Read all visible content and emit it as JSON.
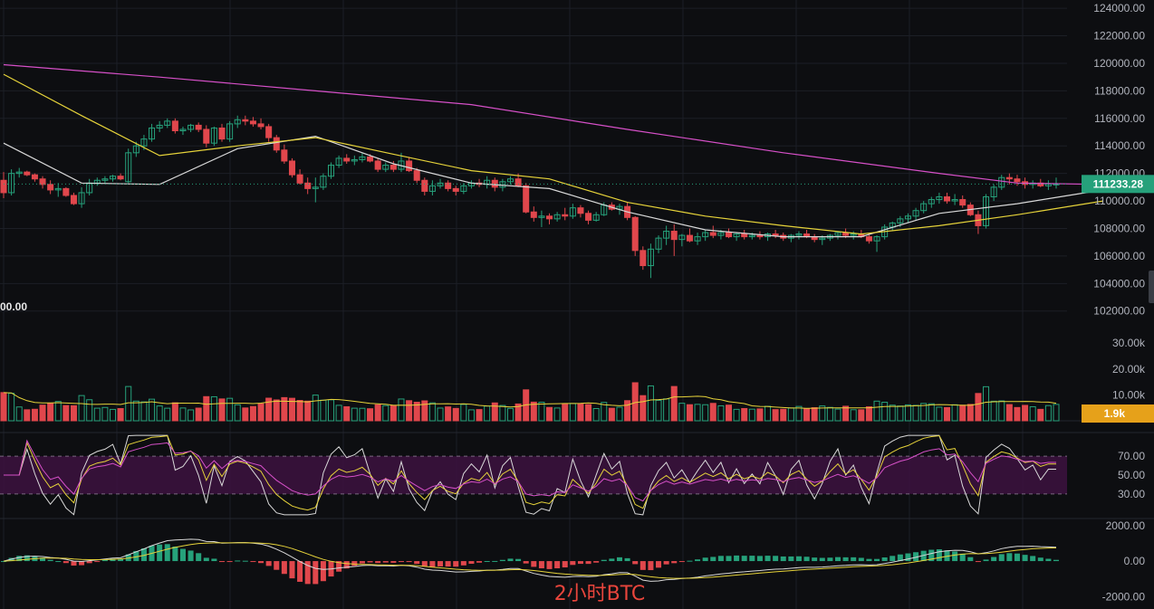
{
  "caption": "2小时BTC",
  "colors": {
    "background": "#0d0e11",
    "grid": "#1c1f26",
    "up": "#26a17b",
    "down": "#e0474c",
    "ma_short": "#d9d9d9",
    "ma_mid": "#e6d33a",
    "ma_long": "#d650c8",
    "last_price_tag": "#26a17b",
    "volume_tag": "#e6a11a",
    "rsi_band": "#3d1240"
  },
  "chart_data": [
    {
      "panel": "price",
      "type": "candlestick",
      "y_ticks": [
        "124000.00",
        "122000.00",
        "120000.00",
        "118000.00",
        "116000.00",
        "114000.00",
        "112000.00",
        "110000.00",
        "108000.00",
        "106000.00",
        "104000.00",
        "102000.00"
      ],
      "ylim": [
        100800,
        124600
      ],
      "last_price_label": "111233.28",
      "left_edge_label": "00.00",
      "ohlc_approx": [
        [
          111500,
          112100,
          110200,
          110600
        ],
        [
          110600,
          112300,
          110400,
          112000
        ],
        [
          112000,
          112400,
          111700,
          112100
        ],
        [
          112100,
          112200,
          111800,
          111900
        ],
        [
          111900,
          112000,
          111400,
          111600
        ],
        [
          111600,
          111800,
          110900,
          111200
        ],
        [
          111200,
          111500,
          110500,
          110800
        ],
        [
          110800,
          111300,
          110300,
          110900
        ],
        [
          110900,
          111000,
          110300,
          110400
        ],
        [
          110400,
          110600,
          109700,
          109800
        ],
        [
          109800,
          111000,
          109500,
          110600
        ],
        [
          110600,
          111600,
          110400,
          111300
        ],
        [
          111300,
          111700,
          111100,
          111500
        ],
        [
          111500,
          111800,
          111300,
          111600
        ],
        [
          111600,
          111900,
          111400,
          111800
        ],
        [
          111800,
          112000,
          111500,
          111600
        ],
        [
          111400,
          113800,
          111300,
          113500
        ],
        [
          113500,
          114300,
          113200,
          114000
        ],
        [
          114000,
          114800,
          113700,
          114500
        ],
        [
          114500,
          115600,
          114300,
          115300
        ],
        [
          115300,
          115800,
          115000,
          115500
        ],
        [
          115500,
          116000,
          115300,
          115800
        ],
        [
          115800,
          116000,
          114900,
          115100
        ],
        [
          115100,
          115400,
          114800,
          115200
        ],
        [
          115200,
          115600,
          115000,
          115500
        ],
        [
          115500,
          115700,
          115000,
          115200
        ],
        [
          115200,
          115500,
          113900,
          114200
        ],
        [
          114200,
          115400,
          114000,
          115300
        ],
        [
          115300,
          115600,
          114300,
          114500
        ],
        [
          114500,
          115800,
          114300,
          115600
        ],
        [
          115600,
          116200,
          115300,
          115900
        ],
        [
          115900,
          116200,
          115500,
          115800
        ],
        [
          115800,
          116100,
          115400,
          115600
        ],
        [
          115600,
          116000,
          115200,
          115400
        ],
        [
          115400,
          115600,
          114300,
          114600
        ],
        [
          114600,
          114800,
          113500,
          113700
        ],
        [
          113700,
          114100,
          112700,
          112900
        ],
        [
          112900,
          113100,
          111700,
          111900
        ],
        [
          111900,
          112300,
          111200,
          111300
        ],
        [
          111300,
          111700,
          110500,
          110900
        ],
        [
          110900,
          111700,
          109900,
          111000
        ],
        [
          111000,
          112000,
          110800,
          111800
        ],
        [
          111800,
          112800,
          111600,
          112600
        ],
        [
          112600,
          113300,
          112400,
          113100
        ],
        [
          113100,
          113400,
          112700,
          112900
        ],
        [
          112900,
          113300,
          112600,
          113000
        ],
        [
          113000,
          113500,
          112800,
          113200
        ],
        [
          113200,
          113400,
          112800,
          112900
        ],
        [
          112900,
          113100,
          112100,
          112300
        ],
        [
          112300,
          112800,
          112100,
          112600
        ],
        [
          112600,
          112900,
          112100,
          112300
        ],
        [
          112300,
          113500,
          112100,
          112900
        ],
        [
          112900,
          113200,
          112100,
          112200
        ],
        [
          112200,
          112400,
          111300,
          111500
        ],
        [
          111500,
          111700,
          110400,
          110700
        ],
        [
          110700,
          111500,
          110400,
          111100
        ],
        [
          111100,
          111600,
          110900,
          111300
        ],
        [
          111300,
          111500,
          110700,
          110900
        ],
        [
          110900,
          111100,
          110400,
          110700
        ],
        [
          110700,
          111300,
          110500,
          111100
        ],
        [
          111100,
          111500,
          110900,
          111300
        ],
        [
          111300,
          111600,
          111000,
          111200
        ],
        [
          111200,
          111800,
          110900,
          111500
        ],
        [
          111500,
          111700,
          110700,
          111000
        ],
        [
          111000,
          111600,
          110700,
          111400
        ],
        [
          111400,
          111800,
          111200,
          111600
        ],
        [
          111600,
          112000,
          111000,
          111100
        ],
        [
          111100,
          111300,
          109100,
          109200
        ],
        [
          109200,
          109600,
          108500,
          108800
        ],
        [
          108800,
          109300,
          108100,
          108900
        ],
        [
          108900,
          109100,
          108300,
          108700
        ],
        [
          108700,
          109200,
          108500,
          109000
        ],
        [
          109000,
          109500,
          108600,
          108900
        ],
        [
          108900,
          109800,
          108700,
          109500
        ],
        [
          109500,
          109700,
          108800,
          109100
        ],
        [
          109100,
          109300,
          108300,
          108600
        ],
        [
          108600,
          109200,
          108500,
          109000
        ],
        [
          109000,
          109900,
          108900,
          109700
        ],
        [
          109700,
          109900,
          109300,
          109400
        ],
        [
          109400,
          109800,
          109000,
          109600
        ],
        [
          109600,
          109900,
          108600,
          108800
        ],
        [
          108800,
          108900,
          106000,
          106400
        ],
        [
          106400,
          106700,
          105000,
          105300
        ],
        [
          105300,
          106900,
          104400,
          106500
        ],
        [
          106500,
          107500,
          106200,
          107300
        ],
        [
          107300,
          108200,
          106800,
          107800
        ],
        [
          107800,
          108300,
          106000,
          107200
        ],
        [
          107200,
          107600,
          106700,
          107500
        ],
        [
          107500,
          108000,
          107000,
          107100
        ],
        [
          107100,
          107700,
          106800,
          107400
        ],
        [
          107400,
          107900,
          107100,
          107700
        ],
        [
          107700,
          108200,
          107300,
          107500
        ],
        [
          107500,
          107900,
          107200,
          107700
        ],
        [
          107700,
          108000,
          107300,
          107400
        ],
        [
          107400,
          107700,
          107100,
          107600
        ],
        [
          107600,
          107900,
          107200,
          107400
        ],
        [
          107400,
          107700,
          107200,
          107500
        ],
        [
          107500,
          107800,
          107200,
          107400
        ],
        [
          107400,
          107700,
          107100,
          107600
        ],
        [
          107600,
          107900,
          107300,
          107500
        ],
        [
          107500,
          107700,
          107100,
          107300
        ],
        [
          107300,
          107600,
          107000,
          107500
        ],
        [
          107500,
          107800,
          107200,
          107600
        ],
        [
          107600,
          107900,
          107300,
          107400
        ],
        [
          107400,
          107600,
          107000,
          107200
        ],
        [
          107200,
          107500,
          106800,
          107300
        ],
        [
          107300,
          107600,
          107100,
          107500
        ],
        [
          107500,
          107800,
          107200,
          107700
        ],
        [
          107700,
          108000,
          107300,
          107500
        ],
        [
          107500,
          107800,
          107200,
          107600
        ],
        [
          107600,
          107900,
          107300,
          107400
        ],
        [
          107400,
          107600,
          106900,
          107100
        ],
        [
          107100,
          107500,
          106300,
          107400
        ],
        [
          107400,
          108300,
          107200,
          108100
        ],
        [
          108100,
          108500,
          107800,
          108400
        ],
        [
          108400,
          108900,
          108100,
          108700
        ],
        [
          108700,
          109100,
          108400,
          108900
        ],
        [
          108900,
          109500,
          108600,
          109300
        ],
        [
          109300,
          110000,
          109100,
          109800
        ],
        [
          109800,
          110300,
          109500,
          110100
        ],
        [
          110100,
          110600,
          109800,
          110300
        ],
        [
          110300,
          110600,
          109800,
          110000
        ],
        [
          110000,
          110500,
          109700,
          110100
        ],
        [
          110100,
          110400,
          109500,
          109700
        ],
        [
          109700,
          109900,
          108900,
          109000
        ],
        [
          109000,
          109300,
          107600,
          108200
        ],
        [
          108200,
          110500,
          108000,
          110300
        ],
        [
          110300,
          111200,
          110000,
          111000
        ],
        [
          111000,
          111900,
          110800,
          111700
        ],
        [
          111700,
          112000,
          111200,
          111600
        ],
        [
          111600,
          111900,
          111100,
          111400
        ],
        [
          111400,
          111700,
          110900,
          111200
        ],
        [
          111200,
          111500,
          110900,
          111300
        ],
        [
          111300,
          111600,
          111000,
          111100
        ],
        [
          111100,
          111500,
          110800,
          111233
        ],
        [
          111233,
          111700,
          110900,
          111233
        ]
      ],
      "moving_averages": [
        {
          "color": "#d9d9d9",
          "points": [
            [
              0,
              114200
            ],
            [
              10,
              111300
            ],
            [
              20,
              111200
            ],
            [
              30,
              113800
            ],
            [
              40,
              114700
            ],
            [
              50,
              112700
            ],
            [
              60,
              111300
            ],
            [
              70,
              110900
            ],
            [
              80,
              109200
            ],
            [
              90,
              107900
            ],
            [
              100,
              107400
            ],
            [
              110,
              107400
            ],
            [
              120,
              109100
            ],
            [
              130,
              109800
            ],
            [
              141,
              110800
            ]
          ]
        },
        {
          "color": "#e6d33a",
          "points": [
            [
              0,
              119200
            ],
            [
              10,
              116200
            ],
            [
              20,
              113300
            ],
            [
              30,
              114000
            ],
            [
              40,
              114600
            ],
            [
              50,
              113400
            ],
            [
              60,
              112200
            ],
            [
              70,
              111600
            ],
            [
              80,
              109900
            ],
            [
              90,
              108900
            ],
            [
              100,
              108200
            ],
            [
              110,
              107600
            ],
            [
              120,
              108200
            ],
            [
              130,
              109000
            ],
            [
              141,
              110000
            ]
          ]
        },
        {
          "color": "#d650c8",
          "points": [
            [
              0,
              119900
            ],
            [
              20,
              119000
            ],
            [
              40,
              118000
            ],
            [
              60,
              117000
            ],
            [
              80,
              115200
            ],
            [
              100,
              113500
            ],
            [
              120,
              112000
            ],
            [
              130,
              111300
            ],
            [
              141,
              111200
            ]
          ]
        }
      ]
    },
    {
      "panel": "volume",
      "type": "bar",
      "y_ticks": [
        "30.00k",
        "20.00k",
        "10.00k"
      ],
      "ylim": [
        0,
        36000
      ],
      "last_volume_label": "1.9k"
    },
    {
      "panel": "rsi",
      "type": "line",
      "y_ticks": [
        "70.00",
        "50.00",
        "30.00"
      ],
      "ylim": [
        5,
        95
      ],
      "band": [
        30,
        70
      ]
    },
    {
      "panel": "macd",
      "type": "histogram",
      "y_ticks": [
        "2000.00",
        "0.00",
        "-2000.00"
      ],
      "ylim": [
        -2700,
        2400
      ]
    }
  ]
}
